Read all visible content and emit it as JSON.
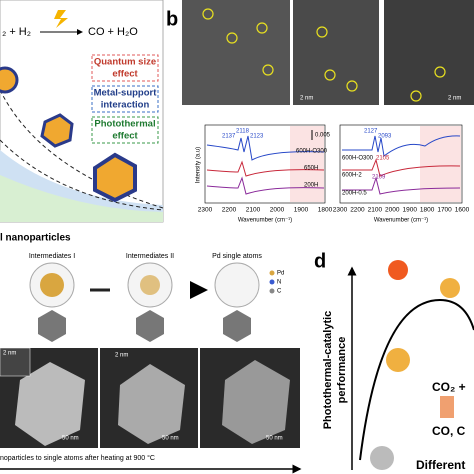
{
  "panel_a": {
    "reactants": "₂ + H₂",
    "products": "CO + H₂O",
    "effects": [
      "Quantum size",
      "effect",
      "Metal-support",
      "interaction",
      "Photothermal",
      "effect"
    ],
    "caption": "l nanoparticles"
  },
  "panel_b": {
    "label": "b",
    "scale_bars": [
      "2 nm",
      "2 nm"
    ],
    "spectra": [
      {
        "scale": "0.005",
        "peaks": [
          "2118",
          "2137",
          "2123"
        ],
        "samples": [
          "600H-O300",
          "650H",
          "200H"
        ],
        "xticks": [
          "2300",
          "2200",
          "2100",
          "2000",
          "1900",
          "1800"
        ]
      },
      {
        "peaks": [
          "2127",
          "2093",
          "2105",
          "2109"
        ],
        "samples": [
          "600H-O300",
          "600H-2",
          "200H-0.5"
        ],
        "xticks": [
          "2300",
          "2200",
          "2100",
          "2000",
          "1900",
          "1800",
          "1700",
          "1600"
        ]
      }
    ],
    "ylabel": "Intensity (a.u)",
    "xlabel": "Wavenumber (cm⁻¹)"
  },
  "panel_c": {
    "stages": [
      "Intermediates I",
      "Intermediates II",
      "Pd single atoms"
    ],
    "legend": [
      "Pd",
      "N",
      "C"
    ],
    "scale_bars": [
      "2 nm",
      "2 nm",
      "50 nm",
      "50 nm",
      "50 nm"
    ],
    "caption": "noparticles to single atoms after heating at 900 °C"
  },
  "panel_d": {
    "label": "d",
    "ylabel": [
      "Photothermal-catalytic",
      "performance"
    ],
    "texts": [
      "CO₂ +",
      "CO, C",
      "Different"
    ]
  }
}
